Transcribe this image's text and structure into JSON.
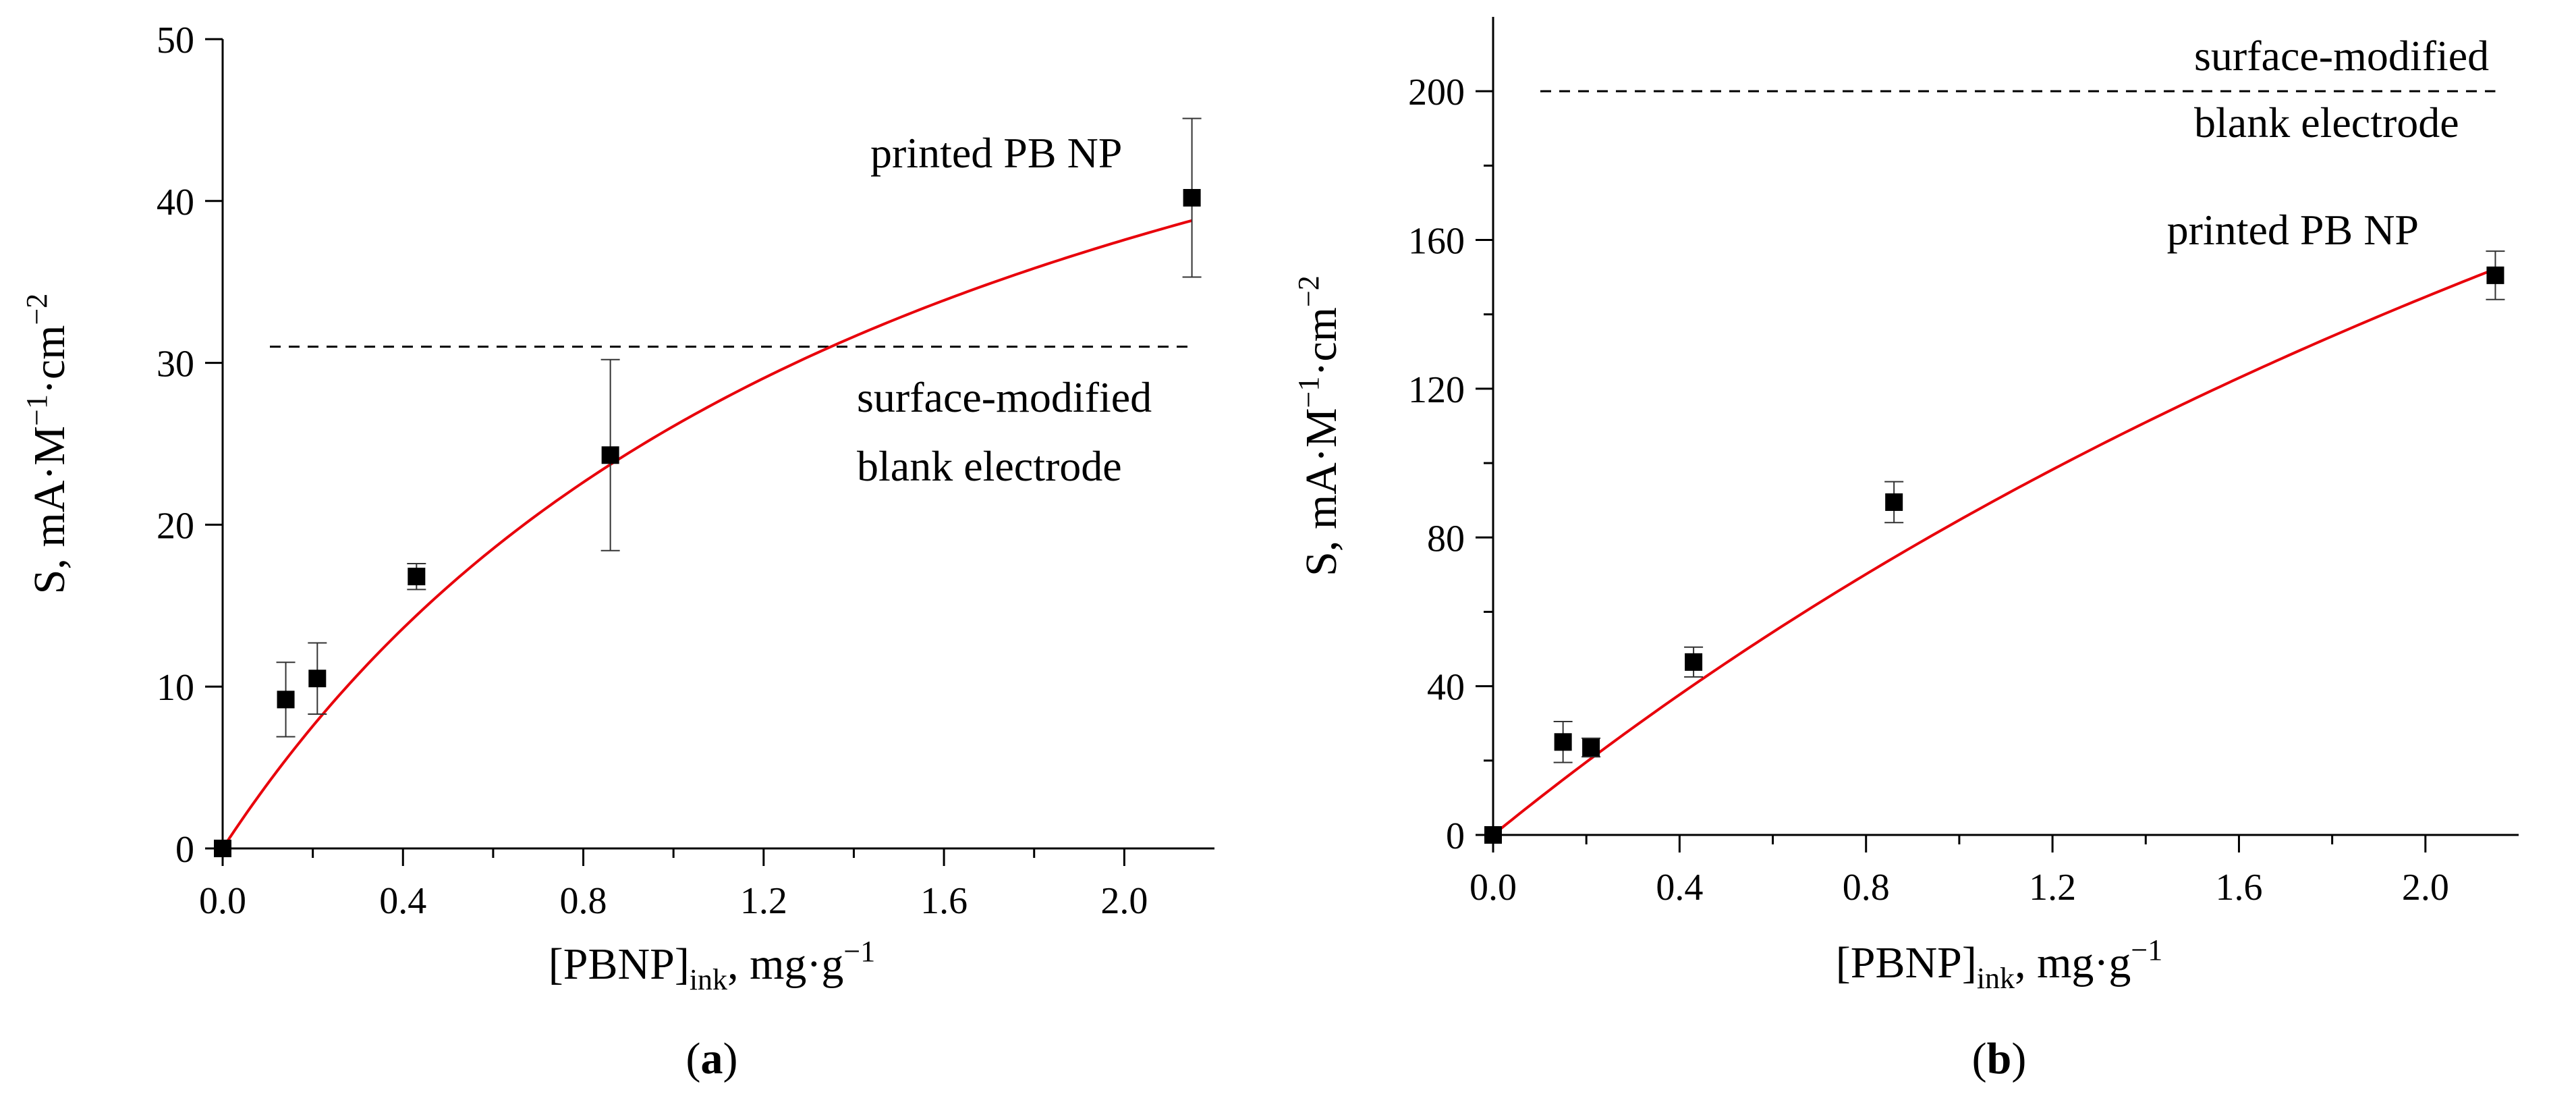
{
  "chart_data": [
    {
      "type": "scatter",
      "panel_label": "a",
      "xlabel_parts": [
        "[PBNP]",
        "ink",
        ", mg·g",
        "−1"
      ],
      "ylabel_parts": [
        "S, mA·M",
        "−1",
        "·cm",
        "−2"
      ],
      "xlim": [
        0,
        2.2
      ],
      "ylim": [
        0,
        50
      ],
      "xticks": [
        0,
        0.4,
        0.8,
        1.2,
        1.6,
        2.0
      ],
      "xtick_labels": [
        "0.0",
        "0.4",
        "0.8",
        "1.2",
        "1.6",
        "2.0"
      ],
      "yticks": [
        0,
        10,
        20,
        30,
        40,
        50
      ],
      "ytick_labels": [
        "0",
        "10",
        "20",
        "30",
        "40",
        "50"
      ],
      "series": [
        {
          "name": "measured",
          "x": [
            0.0,
            0.14,
            0.21,
            0.43,
            0.86,
            2.15
          ],
          "y": [
            0.0,
            9.2,
            10.5,
            16.8,
            24.3,
            40.2
          ],
          "err": [
            0,
            2.3,
            2.2,
            0.8,
            5.9,
            4.9
          ]
        },
        {
          "name": "fit",
          "kind": "curve",
          "color": "#e8000b",
          "model": "saturation",
          "ymax": 67.3,
          "k": 1.58
        }
      ],
      "reference_line": {
        "y": 31,
        "x_end": 2.15,
        "style": "dashed"
      },
      "annotations": [
        {
          "id": "ref",
          "lines": [
            "surface-modified",
            "blank electrode"
          ]
        },
        {
          "id": "pb",
          "lines": [
            "printed PB NP"
          ]
        }
      ]
    },
    {
      "type": "scatter",
      "panel_label": "b",
      "xlabel_parts": [
        "[PBNP]",
        "ink",
        ", mg·g",
        "−1"
      ],
      "ylabel_parts": [
        "S, mA·M",
        "−1",
        "·cm",
        "−2"
      ],
      "xlim": [
        0,
        2.2
      ],
      "ylim": [
        0,
        220
      ],
      "xticks": [
        0,
        0.4,
        0.8,
        1.2,
        1.6,
        2.0
      ],
      "xtick_labels": [
        "0.0",
        "0.4",
        "0.8",
        "1.2",
        "1.6",
        "2.0"
      ],
      "yticks": [
        0,
        40,
        80,
        120,
        160,
        200
      ],
      "ytick_labels": [
        "0",
        "40",
        "80",
        "120",
        "160",
        "200"
      ],
      "series": [
        {
          "name": "measured",
          "x": [
            0.0,
            0.15,
            0.21,
            0.43,
            0.86,
            2.15
          ],
          "y": [
            0.0,
            25.0,
            23.5,
            46.5,
            89.5,
            150.5
          ],
          "err": [
            0,
            5.5,
            2.5,
            4.0,
            5.5,
            6.5
          ]
        },
        {
          "name": "fit",
          "kind": "curve",
          "color": "#e8000b",
          "model": "saturation",
          "ymax": 497,
          "k": 4.87
        }
      ],
      "reference_line": {
        "y": 200,
        "x_end": 2.15,
        "style": "dashed"
      },
      "annotations": [
        {
          "id": "ref",
          "lines": [
            "surface-modified",
            "blank electrode"
          ]
        },
        {
          "id": "pb",
          "lines": [
            "printed PB NP"
          ]
        }
      ]
    }
  ]
}
